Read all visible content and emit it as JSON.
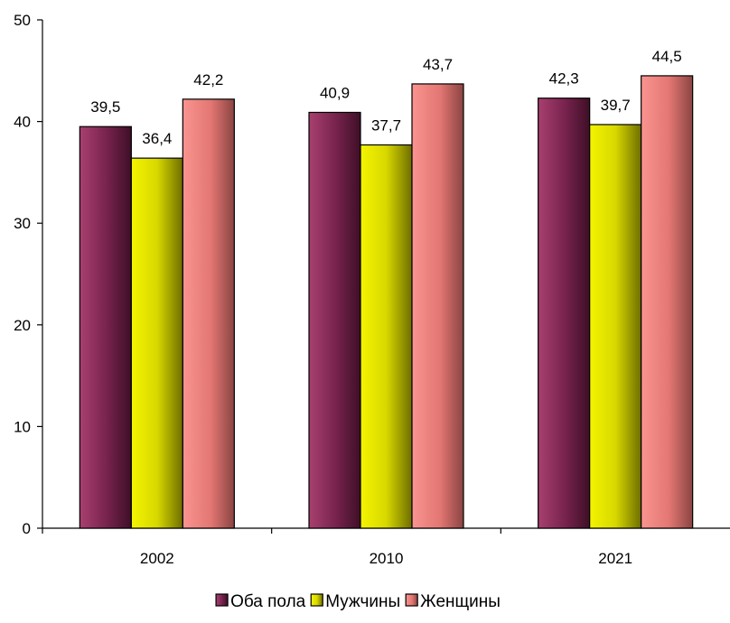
{
  "chart_data": {
    "type": "bar",
    "categories": [
      "2002",
      "2010",
      "2021"
    ],
    "series": [
      {
        "name": "Оба пола",
        "values": [
          39.5,
          40.9,
          42.3
        ],
        "color": "#8e2f5c"
      },
      {
        "name": "Мужчины",
        "values": [
          36.4,
          37.7,
          39.7
        ],
        "color": "#e0e000"
      },
      {
        "name": "Женщины",
        "values": [
          42.2,
          43.7,
          44.5
        ],
        "color": "#ee7f7c"
      }
    ],
    "data_labels": [
      [
        "39,5",
        "40,9",
        "42,3"
      ],
      [
        "36,4",
        "37,7",
        "39,7"
      ],
      [
        "42,2",
        "43,7",
        "44,5"
      ]
    ],
    "yticks": [
      "0",
      "10",
      "20",
      "30",
      "40",
      "50"
    ],
    "ylim": [
      0,
      50
    ],
    "title": "",
    "xlabel": "",
    "ylabel": "",
    "grid": false,
    "legend_position": "bottom"
  }
}
